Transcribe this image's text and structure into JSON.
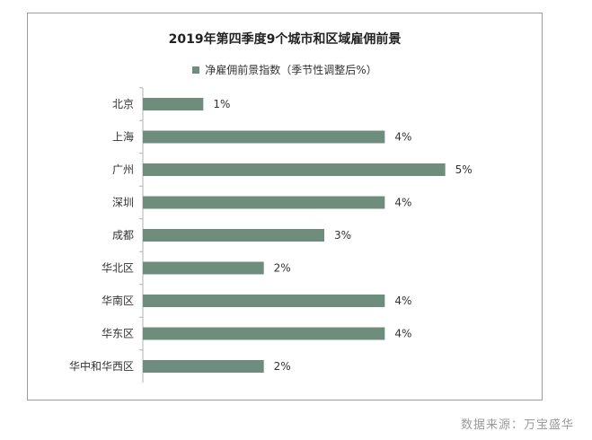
{
  "source_label": "数据来源：万宝盛华",
  "colors": {
    "bar": "#6f8d7d",
    "axis": "#b0b0b0",
    "text": "#333333"
  },
  "chart_data": {
    "type": "bar",
    "orientation": "horizontal",
    "title": "2019年第四季度9个城市和区域雇佣前景",
    "legend_position": "top",
    "grid": false,
    "xlim": [
      0,
      6
    ],
    "value_suffix": "%",
    "categories": [
      "北京",
      "上海",
      "广州",
      "深圳",
      "成都",
      "华北区",
      "华南区",
      "华东区",
      "华中和华西区"
    ],
    "series": [
      {
        "name": "净雇佣前景指数（季节性调整后%）",
        "values": [
          1,
          4,
          5,
          4,
          3,
          2,
          4,
          4,
          2
        ],
        "labels": [
          "1%",
          "4%",
          "5%",
          "4%",
          "3%",
          "2%",
          "4%",
          "4%",
          "2%"
        ]
      }
    ]
  }
}
